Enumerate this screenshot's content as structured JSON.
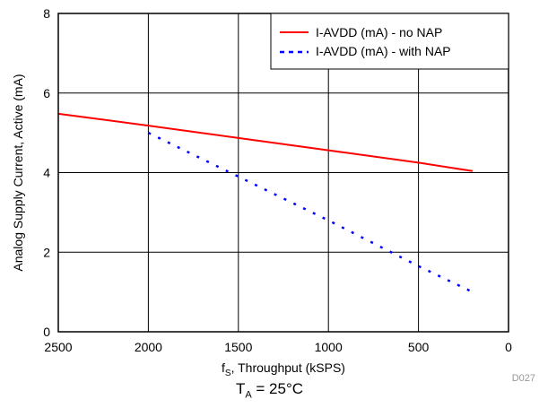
{
  "chart_data": {
    "type": "line",
    "xlabel_main": "f",
    "xlabel_sub": "S",
    "xlabel_rest": ", Throughput  (kSPS)",
    "ylabel": "Analog Supply Current,  Active  (mA)",
    "xlim": [
      2500,
      0
    ],
    "ylim": [
      0,
      8
    ],
    "x_ticks": [
      "2500",
      "2000",
      "1500",
      "1000",
      "500",
      "0"
    ],
    "x_tick_values": [
      2500,
      2000,
      1500,
      1000,
      500,
      0
    ],
    "y_ticks": [
      "0",
      "2",
      "4",
      "6",
      "8"
    ],
    "y_tick_values": [
      0,
      2,
      4,
      6,
      8
    ],
    "grid": true,
    "legend_position": "top-right",
    "series": [
      {
        "name": "I-AVDD (mA) - no NAP",
        "color": "#ff0000",
        "style": "solid",
        "x": [
          2500,
          2000,
          1500,
          1000,
          500,
          200
        ],
        "y": [
          5.48,
          5.18,
          4.87,
          4.56,
          4.25,
          4.04
        ]
      },
      {
        "name": "I-AVDD (mA) - with NAP",
        "color": "#0000ff",
        "style": "dotted",
        "x": [
          2000,
          1500,
          1000,
          500,
          200
        ],
        "y": [
          5.0,
          3.9,
          2.8,
          1.65,
          1.0
        ]
      }
    ],
    "figure_code": "D027",
    "condition": {
      "main": "T",
      "sub": "A",
      "rest": " = 25°C"
    }
  }
}
